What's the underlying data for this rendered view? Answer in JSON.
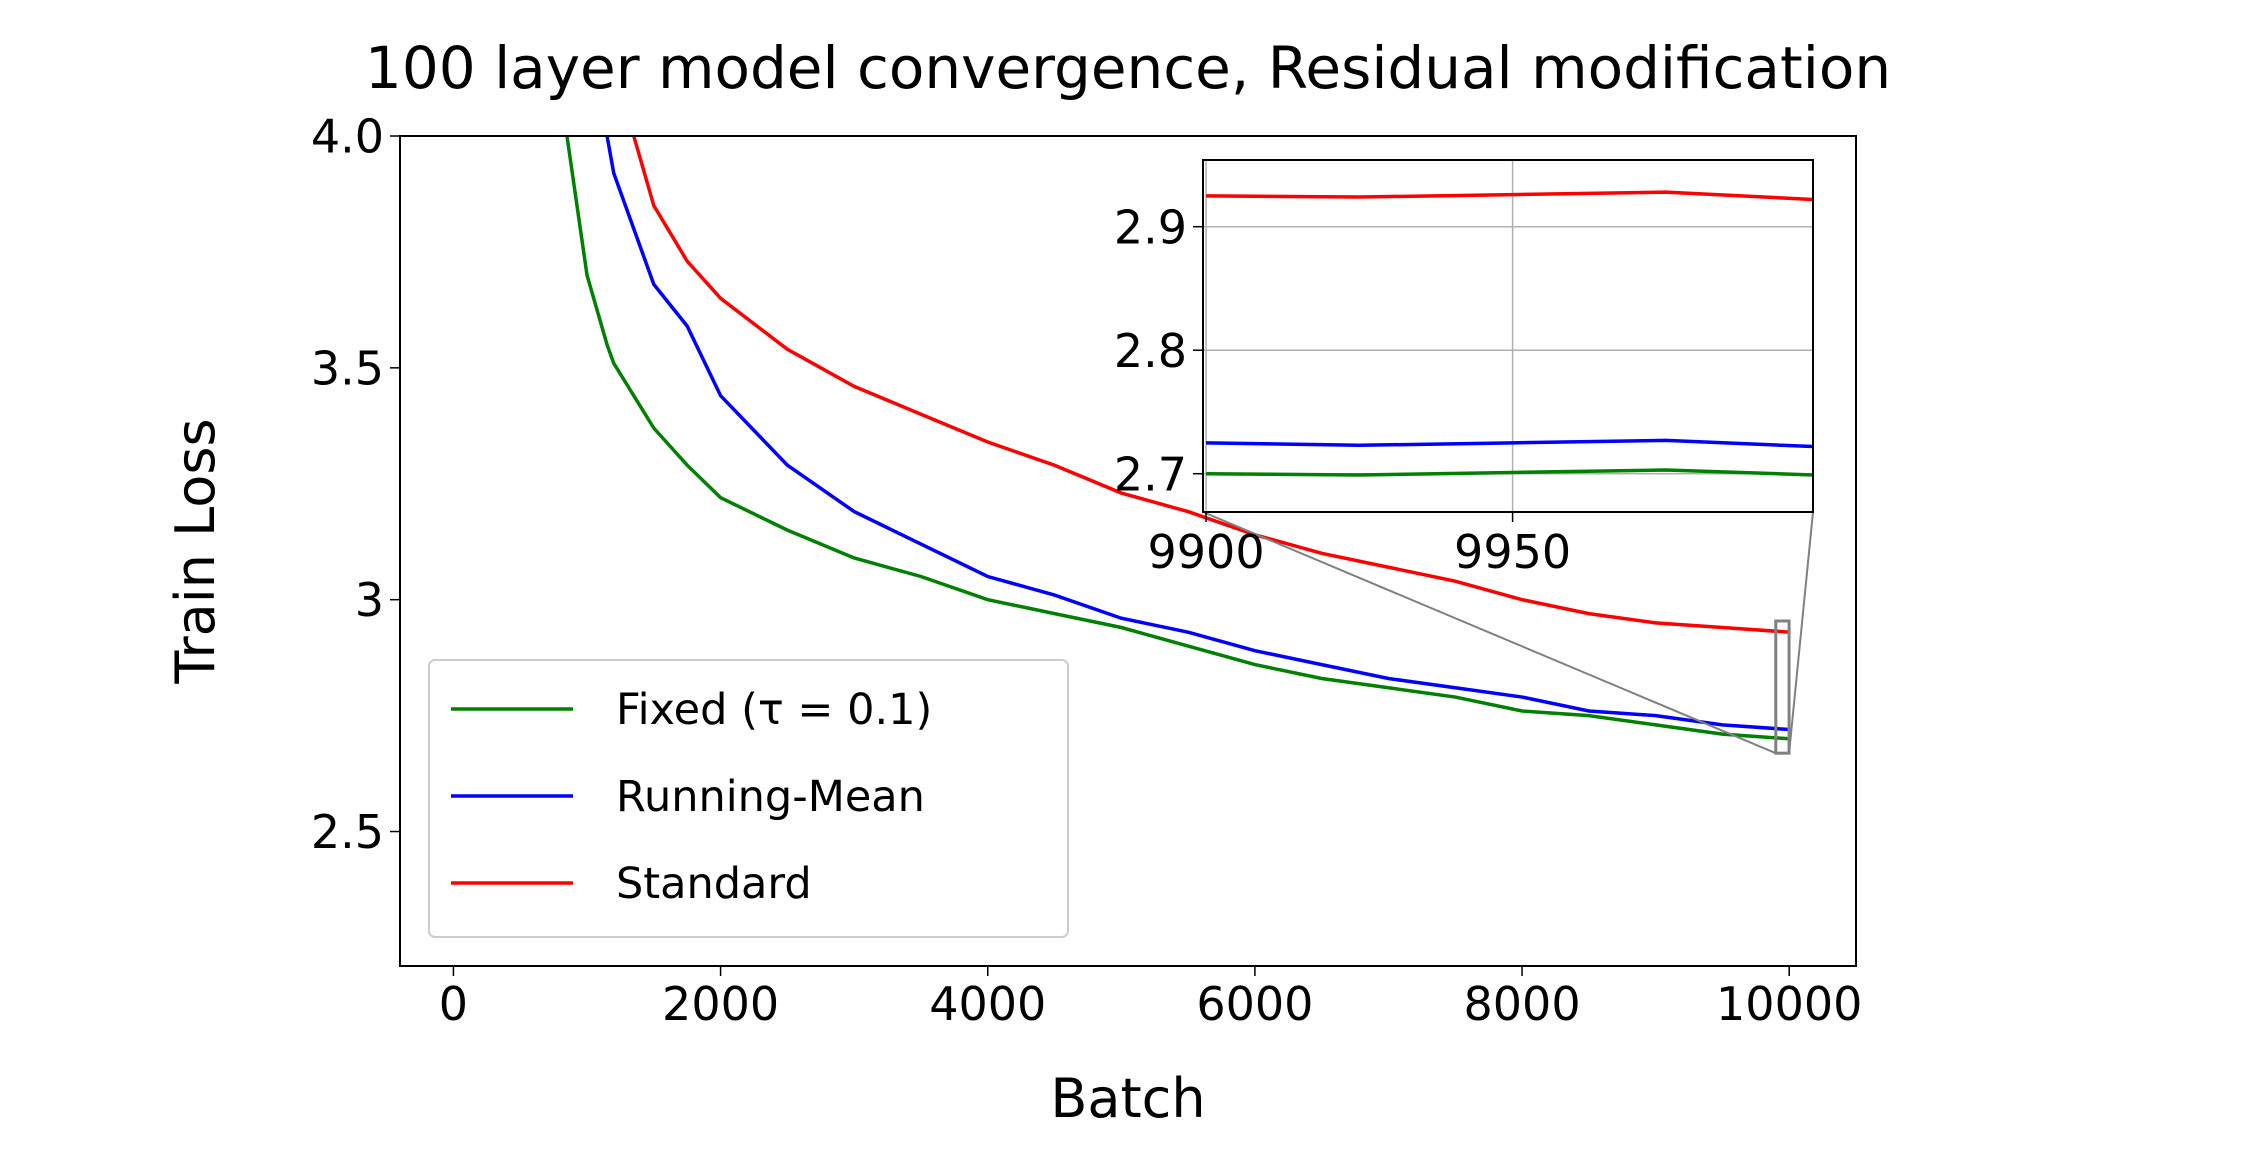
{
  "chart_data": {
    "type": "line",
    "title": "100 layer model convergence, Residual modification",
    "x_label": "Batch",
    "y_label": "Train Loss",
    "xlim": [
      -400,
      10500
    ],
    "ylim": [
      2.21,
      4.0
    ],
    "xticks": [
      0,
      2000,
      4000,
      6000,
      8000,
      10000
    ],
    "yticks": [
      2.5,
      3.0,
      3.5,
      {
        "value": 4.0,
        "label": "4.0"
      }
    ],
    "grid": false,
    "legend": "lower left",
    "x": [
      850,
      1000,
      1150,
      1200,
      1350,
      1500,
      1750,
      2000,
      2500,
      3000,
      3500,
      4000,
      4500,
      5000,
      5500,
      6000,
      6500,
      7000,
      7500,
      8000,
      8500,
      9000,
      9500,
      10000
    ],
    "series": [
      {
        "name": "Fixed (τ = 0.1)",
        "color": "#008000",
        "values": [
          4.0,
          3.7,
          3.55,
          3.51,
          3.44,
          3.37,
          3.29,
          3.22,
          3.15,
          3.09,
          3.05,
          3.0,
          2.97,
          2.94,
          2.9,
          2.86,
          2.83,
          2.81,
          2.79,
          2.76,
          2.75,
          2.73,
          2.71,
          2.7
        ]
      },
      {
        "name": "Running-Mean",
        "color": "#0000ff",
        "values": [
          null,
          null,
          4.0,
          3.92,
          3.8,
          3.68,
          3.59,
          3.44,
          3.29,
          3.19,
          3.12,
          3.05,
          3.01,
          2.96,
          2.93,
          2.89,
          2.86,
          2.83,
          2.81,
          2.79,
          2.76,
          2.75,
          2.73,
          2.72
        ]
      },
      {
        "name": "Standard",
        "color": "#ff0000",
        "values": [
          null,
          null,
          null,
          null,
          4.0,
          3.85,
          3.73,
          3.65,
          3.54,
          3.46,
          3.4,
          3.34,
          3.29,
          3.23,
          3.19,
          3.14,
          3.1,
          3.07,
          3.04,
          3.0,
          2.97,
          2.95,
          2.94,
          2.93
        ]
      }
    ],
    "inset": {
      "xlim": [
        9899.5,
        9999
      ],
      "ylim": [
        2.669,
        2.954
      ],
      "xticks": [
        9900,
        9950
      ],
      "yticks": [
        2.7,
        2.8,
        2.9
      ],
      "grid": true,
      "x": [
        9900,
        9925,
        9950,
        9975,
        9999
      ],
      "series": [
        {
          "color": "#008000",
          "values": [
            2.7,
            2.699,
            2.701,
            2.703,
            2.699
          ]
        },
        {
          "color": "#0000ff",
          "values": [
            2.725,
            2.723,
            2.725,
            2.727,
            2.722
          ]
        },
        {
          "color": "#ff0000",
          "values": [
            2.925,
            2.924,
            2.926,
            2.928,
            2.922
          ]
        }
      ]
    }
  }
}
